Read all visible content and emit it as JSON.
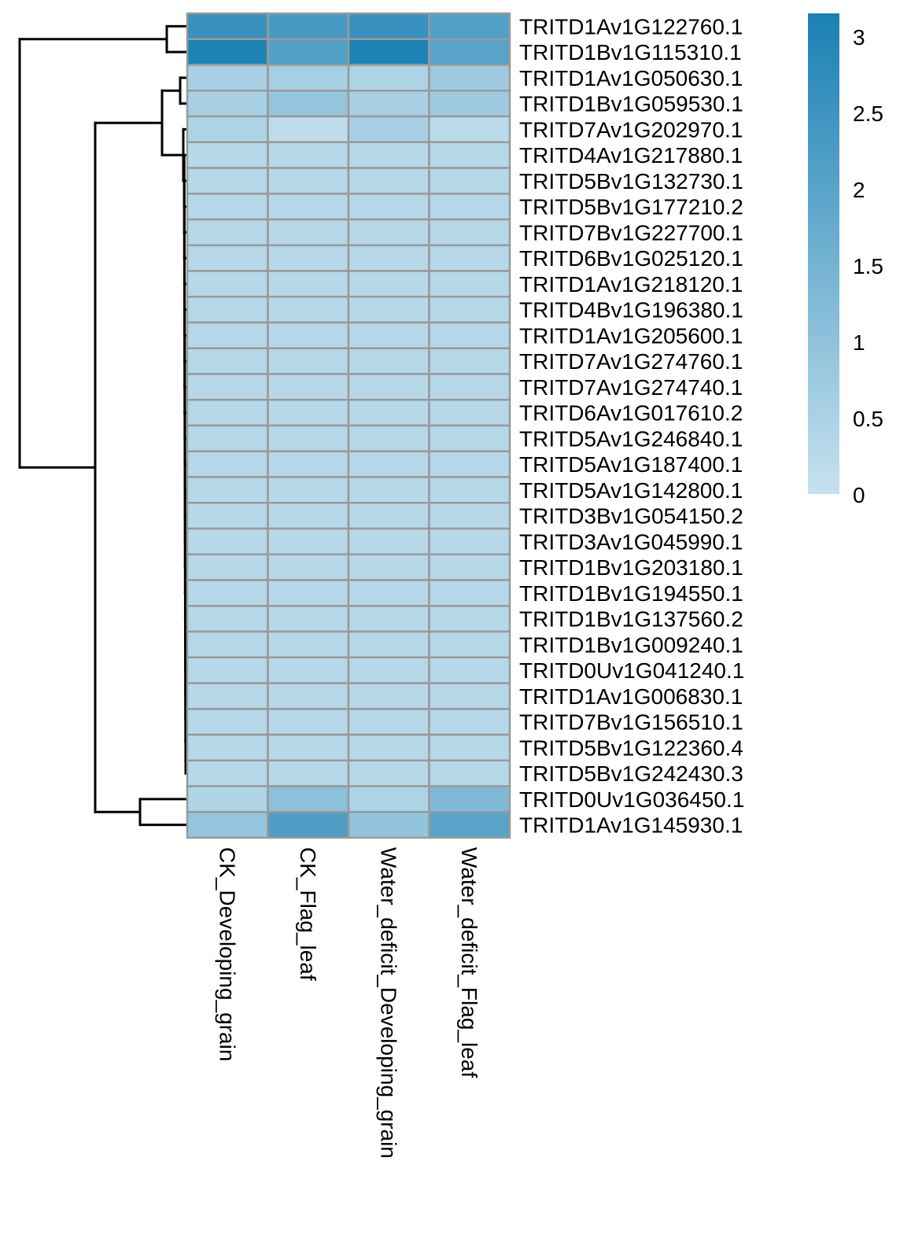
{
  "chart_data": {
    "type": "heatmap",
    "title": "",
    "columns": [
      "CK_Developing_grain",
      "CK_Flag_leaf",
      "Water_deficit_Developing_grain",
      "Water_deficit_Flag_leaf"
    ],
    "rows": [
      "TRITD1Av1G122760.1",
      "TRITD1Bv1G115310.1",
      "TRITD1Av1G050630.1",
      "TRITD1Bv1G059530.1",
      "TRITD7Av1G202970.1",
      "TRITD4Av1G217880.1",
      "TRITD5Bv1G132730.1",
      "TRITD5Bv1G177210.2",
      "TRITD7Bv1G227700.1",
      "TRITD6Bv1G025120.1",
      "TRITD1Av1G218120.1",
      "TRITD4Bv1G196380.1",
      "TRITD1Av1G205600.1",
      "TRITD7Av1G274760.1",
      "TRITD7Av1G274740.1",
      "TRITD6Av1G017610.2",
      "TRITD5Av1G246840.1",
      "TRITD5Av1G187400.1",
      "TRITD5Av1G142800.1",
      "TRITD3Bv1G054150.2",
      "TRITD3Av1G045990.1",
      "TRITD1Bv1G203180.1",
      "TRITD1Bv1G194550.1",
      "TRITD1Bv1G137560.2",
      "TRITD1Bv1G009240.1",
      "TRITD0Uv1G041240.1",
      "TRITD1Av1G006830.1",
      "TRITD7Bv1G156510.1",
      "TRITD5Bv1G122360.4",
      "TRITD5Bv1G242430.3",
      "TRITD0Uv1G036450.1",
      "TRITD1Av1G145930.1"
    ],
    "values": [
      [
        2.6,
        2.3,
        2.6,
        2.1
      ],
      [
        3.1,
        2.1,
        3.1,
        2.0
      ],
      [
        0.55,
        0.6,
        0.45,
        0.75
      ],
      [
        0.55,
        0.9,
        0.55,
        0.75
      ],
      [
        0.45,
        0.15,
        0.55,
        0.2
      ],
      [
        0.3,
        0.3,
        0.3,
        0.3
      ],
      [
        0.3,
        0.3,
        0.3,
        0.3
      ],
      [
        0.3,
        0.3,
        0.3,
        0.3
      ],
      [
        0.3,
        0.3,
        0.3,
        0.3
      ],
      [
        0.3,
        0.3,
        0.3,
        0.3
      ],
      [
        0.3,
        0.3,
        0.3,
        0.3
      ],
      [
        0.3,
        0.3,
        0.3,
        0.3
      ],
      [
        0.3,
        0.3,
        0.3,
        0.3
      ],
      [
        0.3,
        0.3,
        0.3,
        0.3
      ],
      [
        0.3,
        0.3,
        0.3,
        0.3
      ],
      [
        0.3,
        0.3,
        0.3,
        0.3
      ],
      [
        0.3,
        0.3,
        0.3,
        0.3
      ],
      [
        0.3,
        0.3,
        0.3,
        0.3
      ],
      [
        0.3,
        0.3,
        0.3,
        0.3
      ],
      [
        0.3,
        0.3,
        0.3,
        0.3
      ],
      [
        0.3,
        0.3,
        0.3,
        0.3
      ],
      [
        0.3,
        0.3,
        0.3,
        0.3
      ],
      [
        0.3,
        0.3,
        0.3,
        0.3
      ],
      [
        0.3,
        0.3,
        0.3,
        0.3
      ],
      [
        0.3,
        0.3,
        0.3,
        0.3
      ],
      [
        0.3,
        0.3,
        0.3,
        0.3
      ],
      [
        0.3,
        0.3,
        0.3,
        0.3
      ],
      [
        0.3,
        0.3,
        0.3,
        0.3
      ],
      [
        0.3,
        0.3,
        0.3,
        0.3
      ],
      [
        0.3,
        0.3,
        0.3,
        0.3
      ],
      [
        0.4,
        1.05,
        0.45,
        1.3
      ],
      [
        0.9,
        2.2,
        0.95,
        2.0
      ]
    ],
    "color_scale": {
      "min": 0,
      "max": 3.15,
      "low_color": "#c6e1ee",
      "high_color": "#1a80b4"
    },
    "legend": {
      "ticks": [
        "0",
        "0.5",
        "1",
        "1.5",
        "2",
        "2.5",
        "3"
      ],
      "tick_values": [
        0,
        0.5,
        1,
        1.5,
        2,
        2.5,
        3
      ]
    },
    "cell_border_color": "#999999",
    "row_dendrogram": true,
    "legend_placement": "right"
  }
}
